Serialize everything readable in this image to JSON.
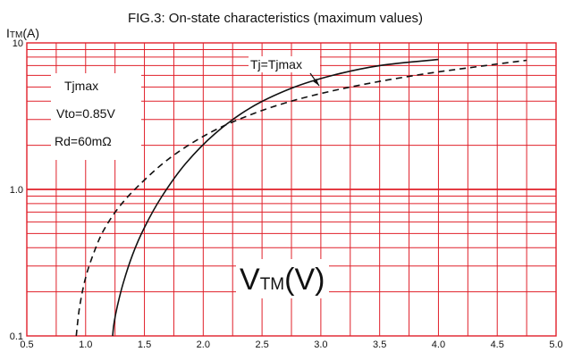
{
  "chart_data": {
    "type": "line",
    "title": "FIG.3:  On-state characteristics (maximum values)",
    "ylabel_main": "I",
    "ylabel_sub": "TM",
    "ylabel_unit": "(A)",
    "xlabel_main": "V",
    "xlabel_sub": "TM",
    "xlabel_unit": "(V)",
    "x_scale": "linear",
    "y_scale": "log",
    "xlim": [
      0.5,
      5.0
    ],
    "ylim": [
      0.1,
      10
    ],
    "x_ticks": [
      "0.5",
      "1.0",
      "1.5",
      "2.0",
      "2.5",
      "3.0",
      "3.5",
      "4.0",
      "4.5",
      "5.0"
    ],
    "y_tick_labels": [
      "10",
      "1.0",
      "0.1"
    ],
    "grid": true,
    "grid_color": "#e0202a",
    "legend_box": [
      "Tjmax",
      "Vto=0.85V",
      "Rd=60mΩ"
    ],
    "annotation": "Tj=Tjmax",
    "series": [
      {
        "style": "solid",
        "color": "#111111",
        "x": [
          1.23,
          1.24,
          1.27,
          1.32,
          1.4,
          1.5,
          1.65,
          1.85,
          2.1,
          2.4,
          2.75,
          3.1,
          3.5,
          4.0
        ],
        "y": [
          0.1,
          0.12,
          0.16,
          0.23,
          0.36,
          0.55,
          0.9,
          1.5,
          2.4,
          3.6,
          4.9,
          6.0,
          7.0,
          7.7
        ]
      },
      {
        "style": "dashed",
        "color": "#111111",
        "x": [
          0.92,
          0.95,
          1.0,
          1.07,
          1.15,
          1.28,
          1.45,
          1.7,
          2.0,
          2.3,
          2.7,
          3.2,
          3.8,
          4.4,
          4.75
        ],
        "y": [
          0.1,
          0.16,
          0.25,
          0.37,
          0.52,
          0.75,
          1.06,
          1.6,
          2.3,
          3.0,
          3.9,
          4.9,
          6.0,
          7.0,
          7.6
        ]
      }
    ]
  }
}
